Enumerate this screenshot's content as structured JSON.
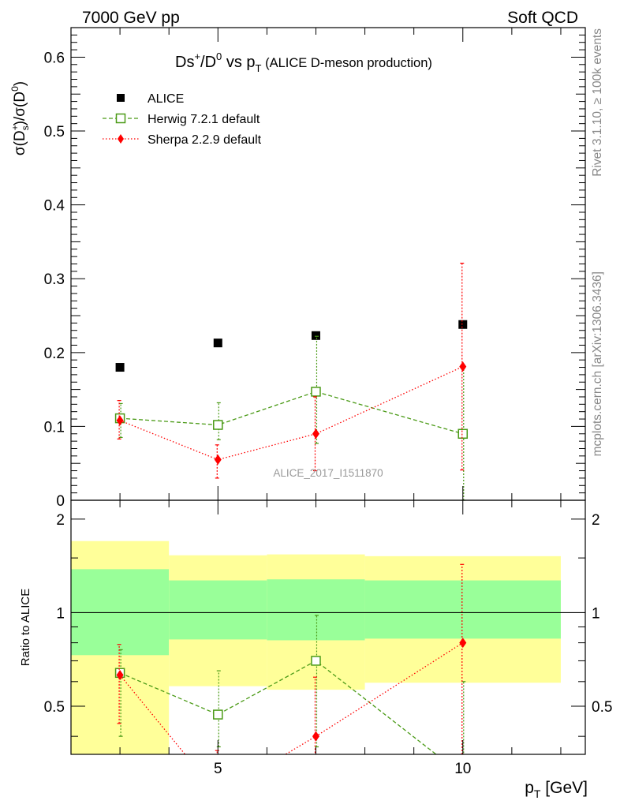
{
  "header": {
    "left": "7000 GeV pp",
    "right": "Soft QCD"
  },
  "side": {
    "rivet": "Rivet 3.1.10, ≥ 100k events",
    "mcplots": "mcplots.cern.ch [arXiv:1306.3436]"
  },
  "chart_data": {
    "type": "scatter",
    "title": {
      "main_a": "Ds",
      "main_sup1": "+",
      "main_b": "/D",
      "main_sup2": "0",
      "main_c": " vs p",
      "main_sub": "T",
      "sub": " (ALICE D-meson production)"
    },
    "ylabel": {
      "a": "σ(D",
      "sup1": "+",
      "sub1": "s",
      "b": ")/σ(D",
      "sup2": "0",
      "c": ")"
    },
    "ratio_ylabel": "Ratio to ALICE",
    "xlabel": {
      "a": "p",
      "sub": "T",
      "b": " [GeV]"
    },
    "watermark": "ALICE_2017_I1511870",
    "xlim": [
      2.0,
      12.5
    ],
    "ylim": [
      0,
      0.64
    ],
    "ratio_ylim": [
      0.35,
      2.3
    ],
    "ratio_scale": "log",
    "x_ticks": [
      5,
      10
    ],
    "x_tick_labels": [
      "5",
      "10"
    ],
    "y_ticks": [
      0,
      0.1,
      0.2,
      0.3,
      0.4,
      0.5,
      0.6
    ],
    "y_tick_labels": [
      "0",
      "0.1",
      "0.2",
      "0.3",
      "0.4",
      "0.5",
      "0.6"
    ],
    "ratio_y_ticks": [
      0.5,
      1,
      2
    ],
    "ratio_y_tick_labels": [
      "0.5",
      "1",
      "2"
    ],
    "bins": [
      [
        2,
        4
      ],
      [
        4,
        6
      ],
      [
        6,
        8
      ],
      [
        8,
        12
      ]
    ],
    "x": [
      3,
      5,
      7,
      10
    ],
    "legend": [
      "ALICE",
      "Herwig 7.2.1 default",
      "Sherpa 2.2.9 default"
    ],
    "legend_position": "top-left",
    "series": [
      {
        "name": "ALICE",
        "color": "#000000",
        "marker": "square-filled",
        "values": [
          0.18,
          0.213,
          0.223,
          0.238
        ],
        "band_inner": [
          [
            0.73,
            1.38
          ],
          [
            0.82,
            1.27
          ],
          [
            0.815,
            1.28
          ],
          [
            0.825,
            1.27
          ]
        ],
        "band_outer": [
          [
            0.35,
            1.7
          ],
          [
            0.58,
            1.53
          ],
          [
            0.565,
            1.54
          ],
          [
            0.595,
            1.52
          ]
        ]
      },
      {
        "name": "Herwig 7.2.1 default",
        "color": "#4a9a16",
        "marker": "square-open",
        "values": [
          0.111,
          0.102,
          0.147,
          0.09
        ],
        "err_low": [
          0.026,
          0.02,
          0.07,
          0.09
        ],
        "err_high": [
          0.02,
          0.03,
          0.075,
          0.09
        ],
        "ratio": [
          0.64,
          0.47,
          0.7,
          0.3
        ],
        "ratio_err_low": [
          0.24,
          0.1,
          0.33,
          0.3
        ],
        "ratio_err_high": [
          0.12,
          0.18,
          0.28,
          0.3
        ]
      },
      {
        "name": "Sherpa 2.2.9 default",
        "color": "#ff0000",
        "marker": "diamond-filled",
        "values": [
          0.108,
          0.055,
          0.09,
          0.181
        ],
        "err_low": [
          0.025,
          0.025,
          0.05,
          0.14
        ],
        "err_high": [
          0.027,
          0.02,
          0.05,
          0.14
        ],
        "ratio": [
          0.63,
          0.26,
          0.4,
          0.8
        ],
        "ratio_err_low": [
          0.19,
          0.12,
          0.22,
          0.45
        ],
        "ratio_err_high": [
          0.16,
          0.1,
          0.22,
          0.63
        ]
      }
    ]
  }
}
